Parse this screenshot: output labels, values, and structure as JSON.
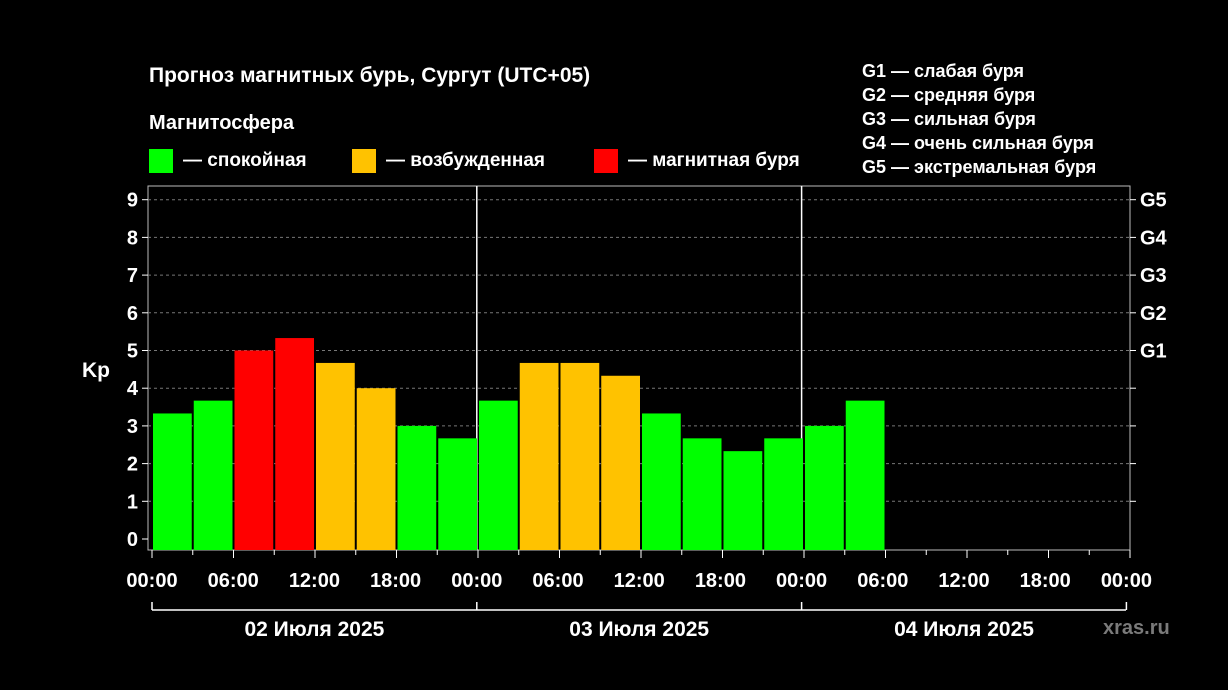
{
  "title": "Прогноз магнитных бурь, Сургут (UTC+05)",
  "subtitle": "Магнитосфера",
  "legend": [
    {
      "label": "— спокойная",
      "color": "#00ff00"
    },
    {
      "label": "— возбужденная",
      "color": "#ffc200"
    },
    {
      "label": "— магнитная буря",
      "color": "#ff0000"
    }
  ],
  "g_scale": [
    "G1 — слабая буря",
    "G2 — средняя буря",
    "G3 — сильная буря",
    "G4 — очень сильная буря",
    "G5 — экстремальная буря"
  ],
  "site": "xras.ru",
  "chart_data": {
    "type": "bar",
    "ylabel": "Kp",
    "ylim": [
      0,
      9
    ],
    "yticks": [
      "0",
      "1",
      "2",
      "3",
      "4",
      "5",
      "6",
      "7",
      "8",
      "9"
    ],
    "right_ticks": [
      {
        "value": 5,
        "label": "G1"
      },
      {
        "value": 6,
        "label": "G2"
      },
      {
        "value": 7,
        "label": "G3"
      },
      {
        "value": 8,
        "label": "G4"
      },
      {
        "value": 9,
        "label": "G5"
      }
    ],
    "xticks": [
      "00:00",
      "06:00",
      "12:00",
      "18:00",
      "00:00",
      "06:00",
      "12:00",
      "18:00",
      "00:00",
      "06:00",
      "12:00",
      "18:00",
      "00:00"
    ],
    "days": [
      "02 Июля 2025",
      "03 Июля 2025",
      "04 Июля 2025"
    ],
    "grid": true,
    "values": [
      3.33,
      3.67,
      5.0,
      5.33,
      4.67,
      4.0,
      3.0,
      2.67,
      3.67,
      4.67,
      4.67,
      4.33,
      3.33,
      2.67,
      2.33,
      2.67,
      3.0,
      3.67
    ],
    "levels": [
      "quiet",
      "quiet",
      "storm",
      "storm",
      "active",
      "active",
      "quiet",
      "quiet",
      "quiet",
      "active",
      "active",
      "active",
      "quiet",
      "quiet",
      "quiet",
      "quiet",
      "quiet",
      "quiet"
    ],
    "level_colors": {
      "quiet": "#00ff00",
      "active": "#ffc200",
      "storm": "#ff0000"
    }
  }
}
